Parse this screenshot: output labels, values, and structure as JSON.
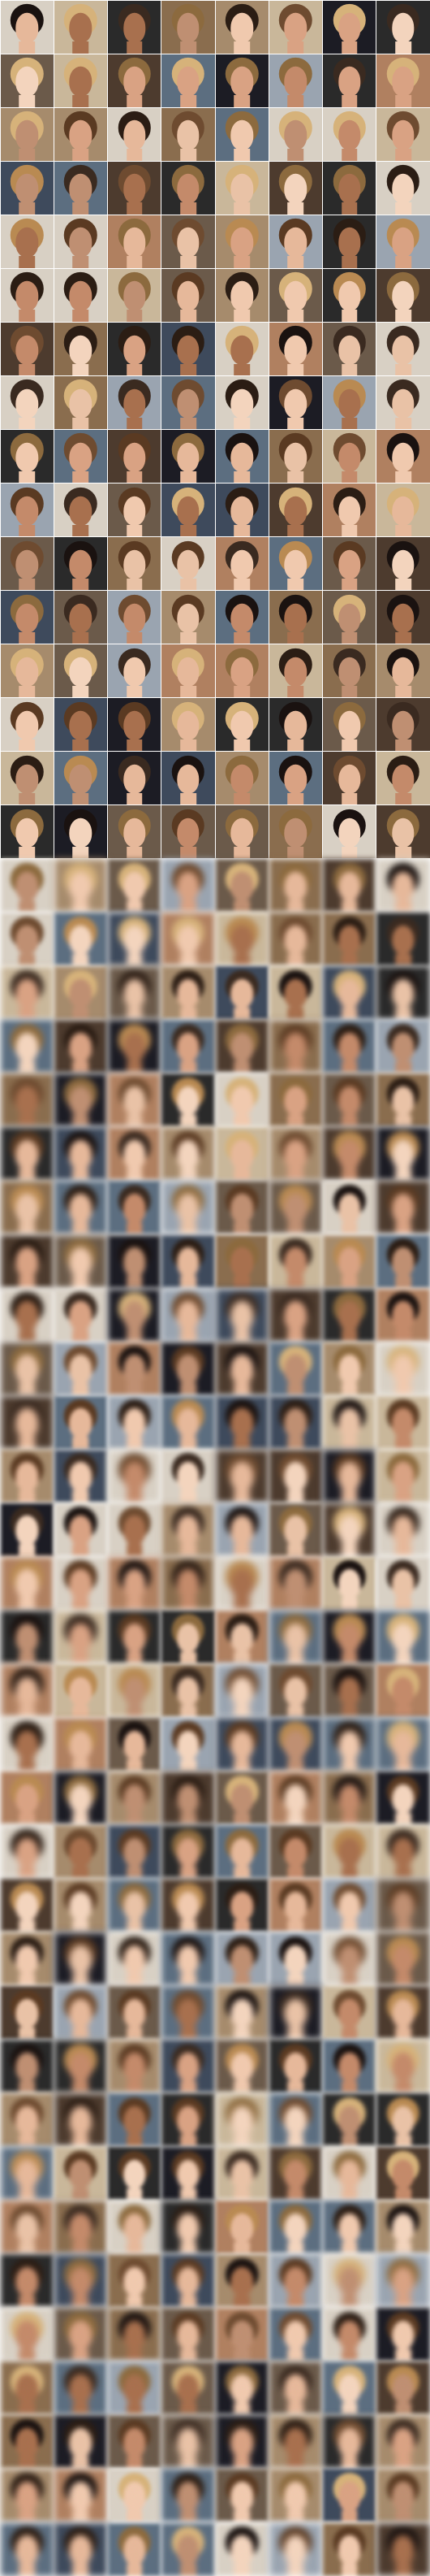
{
  "grid": {
    "columns": 8,
    "rows": 48,
    "sharp_rows": 16,
    "blurry_rows": 32,
    "description_sections": [
      "real-samples",
      "generated-samples"
    ]
  },
  "palette": {
    "backgrounds": [
      "#2a2a2a",
      "#6b5a4a",
      "#c9b79a",
      "#3e4a5c",
      "#8a6d4e",
      "#d8d0c4",
      "#1c1c24",
      "#a68b6c",
      "#4d3b2e",
      "#9aa4b0",
      "#b08060",
      "#5c6e80"
    ],
    "skins": [
      "#e6b89a",
      "#d9a283",
      "#c48a6a",
      "#f0c9ae",
      "#a8704e",
      "#e9c2a6",
      "#bf8f72",
      "#f3d4bd"
    ],
    "hairs": [
      "#2b1d14",
      "#5a3a22",
      "#8c6a3e",
      "#d6b27a",
      "#1a1210",
      "#6e4b30",
      "#b98a52",
      "#3a2a20"
    ]
  }
}
